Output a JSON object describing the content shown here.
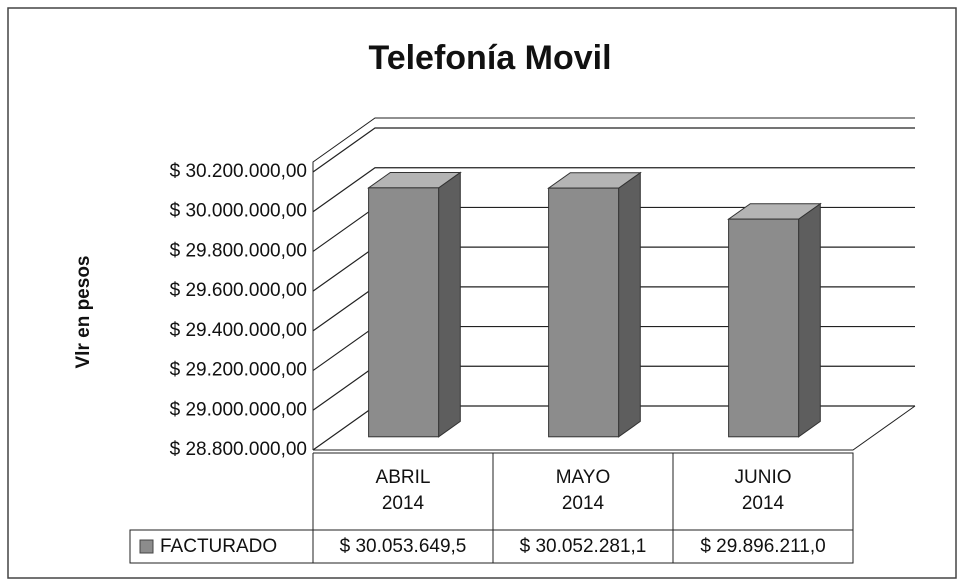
{
  "chart_data": {
    "type": "bar3d",
    "title": "Telefonía Movil",
    "y_label": "Vlr en pesos",
    "categories": [
      "ABRIL\n2014",
      "MAYO\n2014",
      "JUNIO\n2014"
    ],
    "series": [
      {
        "name": "FACTURADO",
        "color": "#8c8c8c",
        "values": [
          30053649.5,
          30052281.1,
          29896211.0
        ],
        "value_labels": [
          "$ 30.053.649,5",
          "$ 30.052.281,1",
          "$ 29.896.211,0"
        ]
      }
    ],
    "ylim": [
      28800000,
      30200000
    ],
    "yticks": [
      {
        "value": 28800000,
        "label": "$ 28.800.000,00"
      },
      {
        "value": 29000000,
        "label": "$ 29.000.000,00"
      },
      {
        "value": 29200000,
        "label": "$ 29.200.000,00"
      },
      {
        "value": 29400000,
        "label": "$ 29.400.000,00"
      },
      {
        "value": 29600000,
        "label": "$ 29.600.000,00"
      },
      {
        "value": 29800000,
        "label": "$ 29.800.000,00"
      },
      {
        "value": 30000000,
        "label": "$ 30.000.000,00"
      },
      {
        "value": 30200000,
        "label": "$ 30.200.000,00"
      }
    ],
    "grid": true
  }
}
